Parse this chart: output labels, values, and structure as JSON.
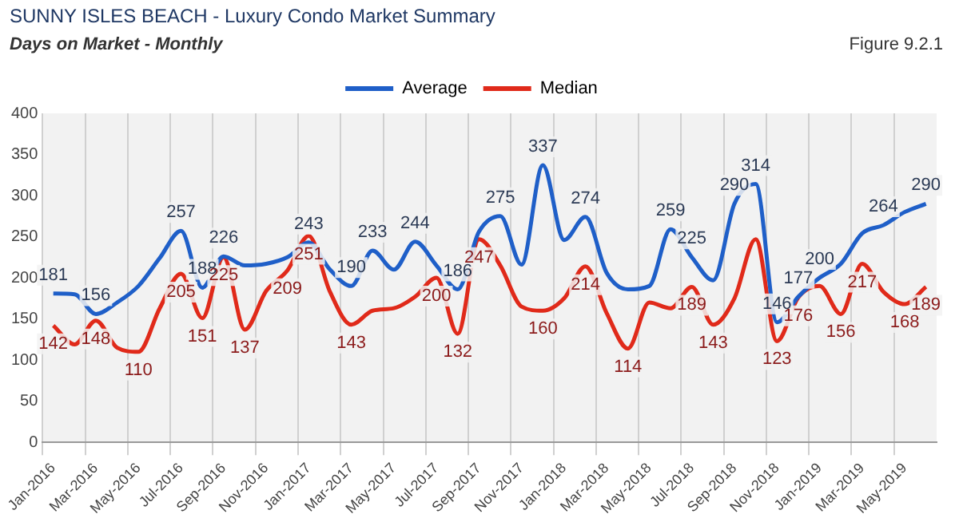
{
  "chart_data": {
    "type": "line",
    "title": "SUNNY ISLES BEACH - Luxury Condo Market Summary",
    "subtitle": "Days on Market - Monthly",
    "annotations": [
      "Figure 9.2.1"
    ],
    "categories": [
      "Jan-2016",
      null,
      "Mar-2016",
      null,
      "May-2016",
      null,
      "Jul-2016",
      null,
      "Sep-2016",
      null,
      "Nov-2016",
      null,
      "Jan-2017",
      null,
      "Mar-2017",
      null,
      "May-2017",
      null,
      "Jul-2017",
      null,
      "Sep-2017",
      null,
      "Nov-2017",
      null,
      "Jan-2018",
      null,
      "Mar-2018",
      null,
      "May-2018",
      null,
      "Jul-2018",
      null,
      "Sep-2018",
      null,
      "Nov-2018",
      null,
      "Jan-2019",
      null,
      "Mar-2019",
      null,
      "May-2019",
      null
    ],
    "series": [
      {
        "name": "Average",
        "color": "#1f5fc8",
        "values": [
          181,
          180,
          156,
          170,
          190,
          224,
          257,
          188,
          226,
          215,
          217,
          225,
          243,
          210,
          190,
          233,
          210,
          244,
          215,
          186,
          256,
          275,
          216,
          337,
          246,
          274,
          206,
          186,
          190,
          259,
          225,
          197,
          290,
          314,
          146,
          177,
          200,
          217,
          254,
          264,
          280,
          290
        ],
        "value_labels": [
          "181",
          null,
          "156",
          null,
          null,
          null,
          "257",
          "188",
          "226",
          null,
          null,
          null,
          "243",
          null,
          "190",
          "233",
          null,
          "244",
          null,
          "186",
          null,
          "275",
          null,
          "337",
          null,
          "274",
          null,
          null,
          null,
          "259",
          "225",
          null,
          "290",
          "314",
          "146",
          "177",
          "200",
          null,
          null,
          "264",
          null,
          "290"
        ]
      },
      {
        "name": "Median",
        "color": "#e02a1a",
        "values": [
          142,
          119,
          148,
          115,
          110,
          163,
          205,
          151,
          225,
          137,
          184,
          209,
          251,
          183,
          143,
          160,
          163,
          177,
          200,
          132,
          247,
          215,
          165,
          160,
          175,
          214,
          157,
          114,
          170,
          163,
          189,
          143,
          175,
          247,
          123,
          176,
          190,
          156,
          217,
          183,
          168,
          189
        ],
        "value_labels": [
          "142",
          null,
          "148",
          null,
          "110",
          null,
          "205",
          "151",
          "225",
          "137",
          null,
          "209",
          "251",
          null,
          "143",
          null,
          null,
          null,
          "200",
          "132",
          "247",
          null,
          null,
          "160",
          null,
          "214",
          null,
          "114",
          null,
          null,
          "189",
          "143",
          null,
          null,
          "123",
          "176",
          null,
          "156",
          "217",
          null,
          "168",
          "189"
        ]
      }
    ],
    "ylim": [
      0,
      400
    ],
    "yticks": [
      0,
      50,
      100,
      150,
      200,
      250,
      300,
      350,
      400
    ],
    "grid": "x",
    "legend": "top",
    "marker": "none",
    "line_style": "solid"
  }
}
